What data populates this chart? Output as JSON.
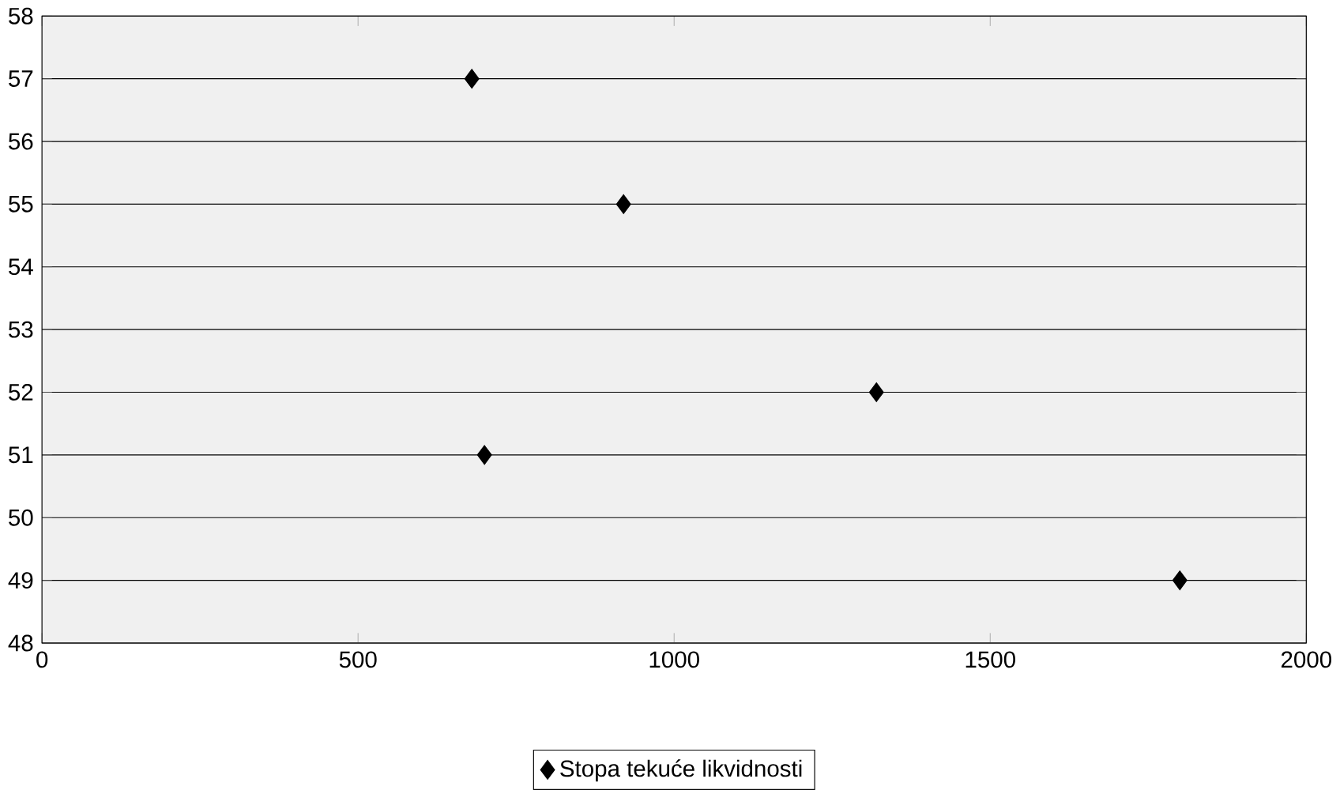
{
  "chart_data": {
    "type": "scatter",
    "series": [
      {
        "name": "Stopa tekuće likvidnosti",
        "color": "#000000",
        "values": [
          57,
          55,
          52,
          51,
          49
        ],
        "x": [
          680,
          920,
          1320,
          700,
          1800
        ]
      }
    ],
    "xlim": [
      0,
      2000
    ],
    "xticks": [
      0,
      500,
      1000,
      1500,
      2000
    ],
    "ylim": [
      48,
      58
    ],
    "yticks": [
      48,
      49,
      50,
      51,
      52,
      53,
      54,
      55,
      56,
      57,
      58
    ],
    "grid": "y",
    "legend": "bottom",
    "marker": "diamond"
  }
}
